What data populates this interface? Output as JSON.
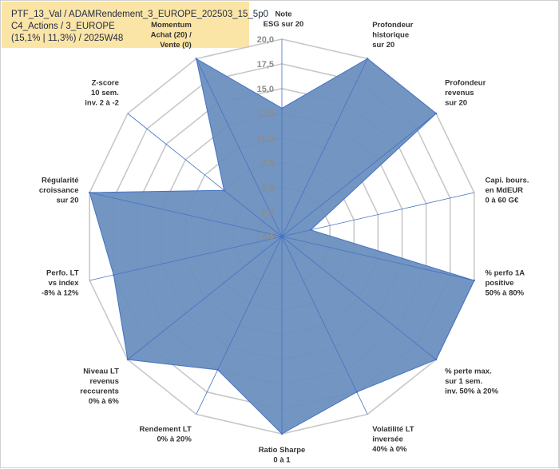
{
  "header": {
    "line1": "PTF_13_Val / ADAMRendement_3_EUROPE_202503_15_5p0",
    "line2": "C4_Actions / 3_EUROPE",
    "line3": "(15,1% | 11,3%) / 2025W48"
  },
  "colors": {
    "fill": "#6b8fbf",
    "stroke": "#4472c4",
    "grid": "#c8c8c8",
    "highlight": "#fbe5a6"
  },
  "chart_data": {
    "type": "radar",
    "rmin": 0,
    "rmax": 20,
    "ticks": [
      "0,0",
      "2,5",
      "5,0",
      "7,5",
      "10,0",
      "12,5",
      "15,0",
      "17,5",
      "20,0"
    ],
    "categories": [
      {
        "label": [
          "Note",
          "ESG sur 20"
        ],
        "highlight": false
      },
      {
        "label": [
          "Profondeur",
          "historique",
          "sur 20"
        ],
        "highlight": false
      },
      {
        "label": [
          "Profondeur",
          "revenus",
          "sur 20"
        ],
        "highlight": false
      },
      {
        "label": [
          "Capi. bours.",
          "en MdEUR",
          "0 à 60 G€"
        ],
        "highlight": false
      },
      {
        "label": [
          "% perfo 1A",
          "positive",
          "50% à 80%"
        ],
        "highlight": false
      },
      {
        "label": [
          "% perte max.",
          "sur 1 sem.",
          "inv. 50% à 20%"
        ],
        "highlight": false
      },
      {
        "label": [
          "Volatilité LT",
          "inversée",
          "40% à 0%"
        ],
        "highlight": false
      },
      {
        "label": [
          "Ratio Sharpe",
          "0 à 1"
        ],
        "highlight": false
      },
      {
        "label": [
          "Rendement LT",
          "0% à 20%"
        ],
        "highlight": false
      },
      {
        "label": [
          "Niveau LT",
          "revenus",
          "reccurents",
          "0% à 6%"
        ],
        "highlight": false
      },
      {
        "label": [
          "Perfo. LT",
          "vs index",
          "-8% à 12%"
        ],
        "highlight": false
      },
      {
        "label": [
          "Régularité",
          "croissance",
          "sur 20"
        ],
        "highlight": false
      },
      {
        "label": [
          "Z-score",
          "10 sem.",
          "inv. 2 à -2"
        ],
        "highlight": false
      },
      {
        "label": [
          "Momentum",
          "Achat (20) /",
          "Vente (0)"
        ],
        "highlight": true
      }
    ],
    "series": [
      {
        "name": "PTF_13_Val",
        "values": [
          13,
          20,
          20,
          3,
          20,
          20,
          17.5,
          20,
          15,
          20,
          17.5,
          20,
          7.5,
          20
        ]
      }
    ]
  }
}
